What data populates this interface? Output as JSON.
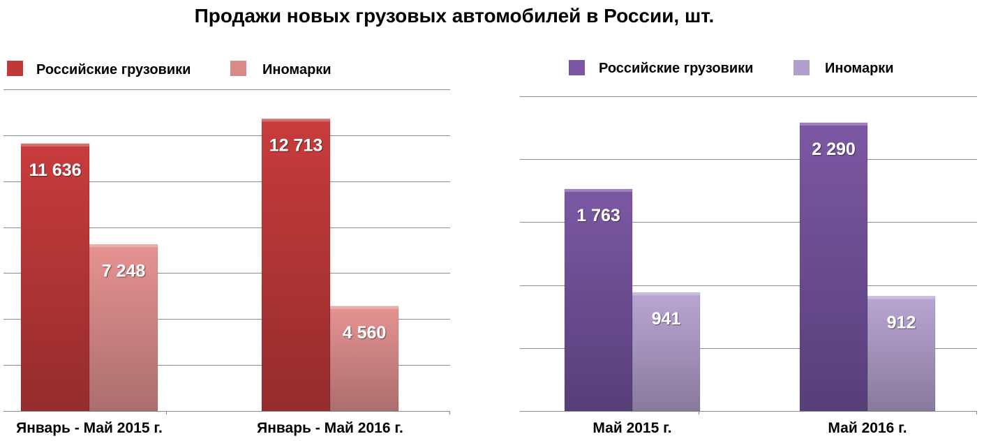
{
  "title": "Продажи новых грузовых автомобилей в России, шт.",
  "chart_data": [
    {
      "type": "bar",
      "title": "Продажи новых грузовых автомобилей в России, шт.",
      "categories": [
        "Январь - Май 2015 г.",
        "Январь - Май 2016 г."
      ],
      "series": [
        {
          "name": "Российские грузовики",
          "values": [
            11636,
            12713
          ],
          "labels": [
            "11 636",
            "12 713"
          ],
          "color": "#c0393a"
        },
        {
          "name": "Иномарки",
          "values": [
            7248,
            4560
          ],
          "labels": [
            "7 248",
            "4 560"
          ],
          "color": "#d98a88"
        }
      ],
      "ylim": [
        0,
        14000
      ],
      "ytick_step": 2000,
      "grid": true,
      "legend": "top-left"
    },
    {
      "type": "bar",
      "categories": [
        "Май 2015 г.",
        "Май 2016 г."
      ],
      "series": [
        {
          "name": "Российские грузовики",
          "values": [
            1763,
            2290
          ],
          "labels": [
            "1 763",
            "2 290"
          ],
          "color": "#7a56a0"
        },
        {
          "name": "Иномарки",
          "values": [
            941,
            912
          ],
          "labels": [
            "941",
            "912"
          ],
          "color": "#b2a0cc"
        }
      ],
      "ylim": [
        0,
        2500
      ],
      "ytick_step": 500,
      "grid": true,
      "legend": "top"
    }
  ]
}
